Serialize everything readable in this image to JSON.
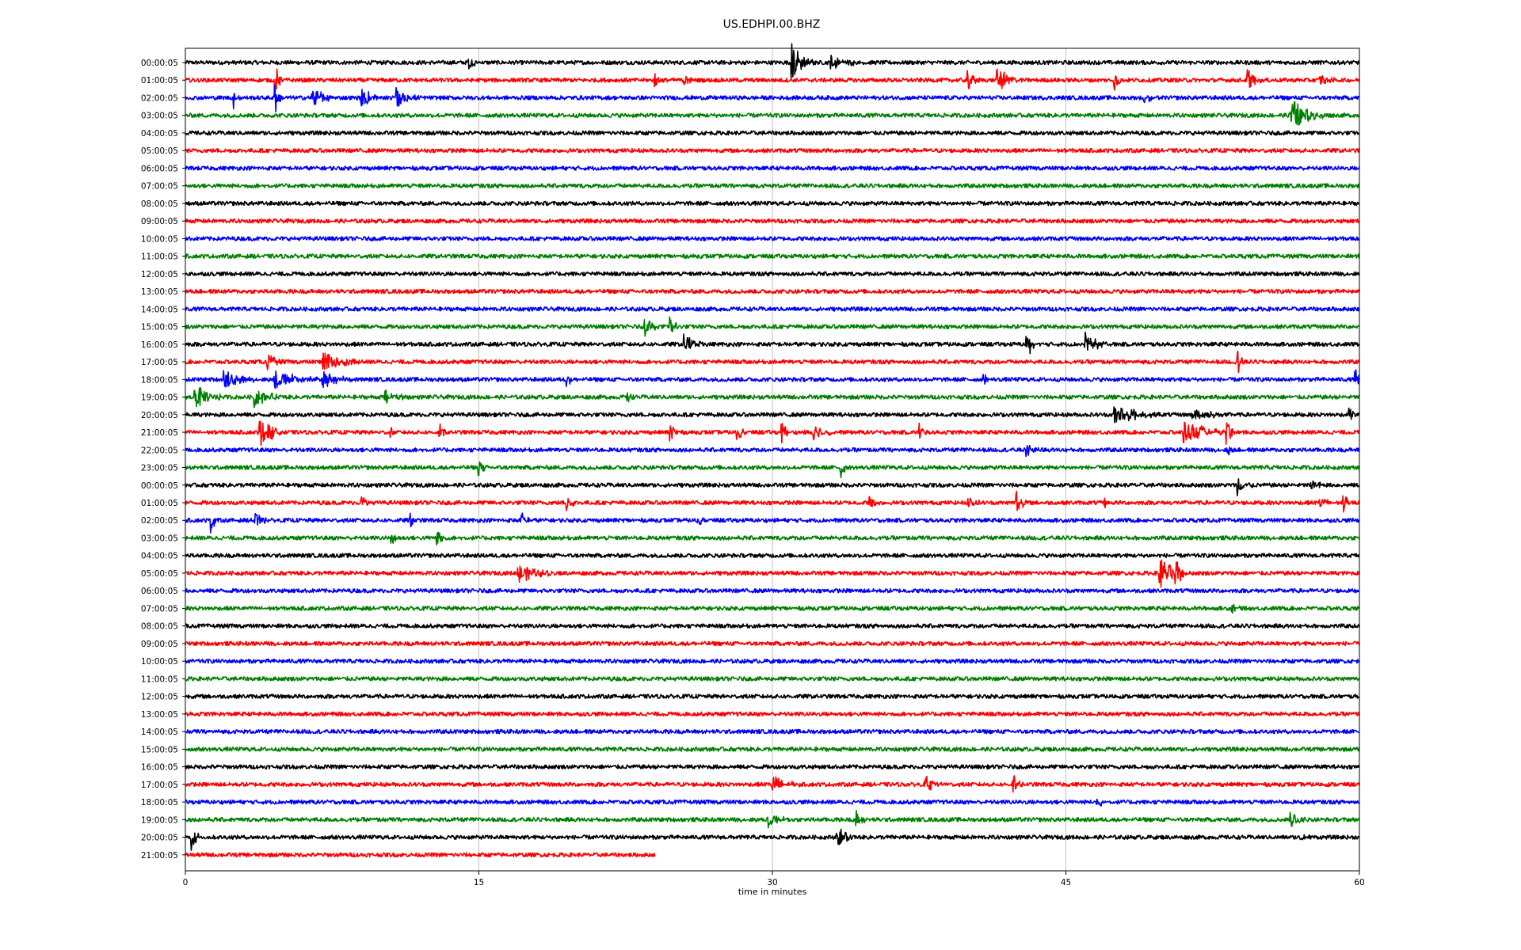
{
  "chart_data": {
    "type": "line",
    "title": "US.EDHPI.00.BHZ",
    "xlabel": "time in minutes",
    "ylabel": "",
    "xlim": [
      0,
      60
    ],
    "xticks": [
      0,
      15,
      30,
      45,
      60
    ],
    "grid": "vertical lines at x ticks",
    "trace_colors": [
      "#000000",
      "#ff0000",
      "#0000ff",
      "#008000"
    ],
    "row_labels": [
      "00:00:05",
      "01:00:05",
      "02:00:05",
      "03:00:05",
      "04:00:05",
      "05:00:05",
      "06:00:05",
      "07:00:05",
      "08:00:05",
      "09:00:05",
      "10:00:05",
      "11:00:05",
      "12:00:05",
      "13:00:05",
      "14:00:05",
      "15:00:05",
      "16:00:05",
      "17:00:05",
      "18:00:05",
      "19:00:05",
      "20:00:05",
      "21:00:05",
      "22:00:05",
      "23:00:05",
      "00:00:05",
      "01:00:05",
      "02:00:05",
      "03:00:05",
      "04:00:05",
      "05:00:05",
      "06:00:05",
      "07:00:05",
      "08:00:05",
      "09:00:05",
      "10:00:05",
      "11:00:05",
      "12:00:05",
      "13:00:05",
      "14:00:05",
      "15:00:05",
      "16:00:05",
      "17:00:05",
      "18:00:05",
      "19:00:05",
      "20:00:05",
      "21:00:05"
    ],
    "last_row_end_minute": 24,
    "events": [
      {
        "row": 0,
        "minute": 14.5,
        "amp": 0.5,
        "dur": 0.6
      },
      {
        "row": 0,
        "minute": 31.0,
        "amp": 1.4,
        "dur": 1.2
      },
      {
        "row": 0,
        "minute": 33.0,
        "amp": 0.6,
        "dur": 1.5
      },
      {
        "row": 1,
        "minute": 4.6,
        "amp": 1.2,
        "dur": 0.3
      },
      {
        "row": 1,
        "minute": 24.0,
        "amp": 0.5,
        "dur": 0.5
      },
      {
        "row": 1,
        "minute": 25.5,
        "amp": 0.4,
        "dur": 0.4
      },
      {
        "row": 1,
        "minute": 40.0,
        "amp": 0.7,
        "dur": 0.6
      },
      {
        "row": 1,
        "minute": 41.5,
        "amp": 1.0,
        "dur": 1.2
      },
      {
        "row": 1,
        "minute": 47.5,
        "amp": 0.9,
        "dur": 0.3
      },
      {
        "row": 1,
        "minute": 54.3,
        "amp": 0.8,
        "dur": 0.8
      },
      {
        "row": 1,
        "minute": 58.0,
        "amp": 0.5,
        "dur": 0.8
      },
      {
        "row": 2,
        "minute": 2.5,
        "amp": 0.9,
        "dur": 0.3
      },
      {
        "row": 2,
        "minute": 4.6,
        "amp": 1.2,
        "dur": 0.3
      },
      {
        "row": 2,
        "minute": 6.5,
        "amp": 0.8,
        "dur": 1.2
      },
      {
        "row": 2,
        "minute": 9.0,
        "amp": 0.7,
        "dur": 1.5
      },
      {
        "row": 2,
        "minute": 10.8,
        "amp": 0.8,
        "dur": 1.2
      },
      {
        "row": 2,
        "minute": 49.0,
        "amp": 0.5,
        "dur": 0.6
      },
      {
        "row": 3,
        "minute": 56.5,
        "amp": 1.2,
        "dur": 2.0
      },
      {
        "row": 15,
        "minute": 23.5,
        "amp": 0.8,
        "dur": 0.8
      },
      {
        "row": 15,
        "minute": 24.8,
        "amp": 0.7,
        "dur": 0.5
      },
      {
        "row": 16,
        "minute": 25.5,
        "amp": 0.7,
        "dur": 1.2
      },
      {
        "row": 16,
        "minute": 43.0,
        "amp": 0.9,
        "dur": 0.8
      },
      {
        "row": 16,
        "minute": 46.0,
        "amp": 0.8,
        "dur": 1.2
      },
      {
        "row": 17,
        "minute": 4.2,
        "amp": 0.6,
        "dur": 0.8
      },
      {
        "row": 17,
        "minute": 7.0,
        "amp": 0.9,
        "dur": 2.0
      },
      {
        "row": 17,
        "minute": 53.8,
        "amp": 0.9,
        "dur": 0.3
      },
      {
        "row": 18,
        "minute": 2.0,
        "amp": 0.8,
        "dur": 1.5
      },
      {
        "row": 18,
        "minute": 4.5,
        "amp": 0.7,
        "dur": 3.0
      },
      {
        "row": 18,
        "minute": 7.0,
        "amp": 0.7,
        "dur": 1.5
      },
      {
        "row": 18,
        "minute": 19.5,
        "amp": 0.5,
        "dur": 0.3
      },
      {
        "row": 18,
        "minute": 40.8,
        "amp": 0.5,
        "dur": 0.3
      },
      {
        "row": 18,
        "minute": 59.8,
        "amp": 0.8,
        "dur": 0.4
      },
      {
        "row": 19,
        "minute": 0.5,
        "amp": 0.9,
        "dur": 1.5
      },
      {
        "row": 19,
        "minute": 3.5,
        "amp": 0.8,
        "dur": 1.5
      },
      {
        "row": 19,
        "minute": 10.2,
        "amp": 0.7,
        "dur": 1.2
      },
      {
        "row": 19,
        "minute": 22.6,
        "amp": 0.5,
        "dur": 0.3
      },
      {
        "row": 20,
        "minute": 47.5,
        "amp": 0.8,
        "dur": 2.5
      },
      {
        "row": 20,
        "minute": 51.5,
        "amp": 0.4,
        "dur": 2.0
      },
      {
        "row": 20,
        "minute": 59.5,
        "amp": 0.6,
        "dur": 0.4
      },
      {
        "row": 21,
        "minute": 3.8,
        "amp": 1.1,
        "dur": 1.5
      },
      {
        "row": 21,
        "minute": 10.5,
        "amp": 0.5,
        "dur": 0.3
      },
      {
        "row": 21,
        "minute": 13.0,
        "amp": 0.6,
        "dur": 0.3
      },
      {
        "row": 21,
        "minute": 24.8,
        "amp": 0.7,
        "dur": 0.5
      },
      {
        "row": 21,
        "minute": 28.2,
        "amp": 0.6,
        "dur": 0.4
      },
      {
        "row": 21,
        "minute": 30.5,
        "amp": 0.8,
        "dur": 0.4
      },
      {
        "row": 21,
        "minute": 32.0,
        "amp": 0.7,
        "dur": 1.2
      },
      {
        "row": 21,
        "minute": 37.5,
        "amp": 0.6,
        "dur": 0.4
      },
      {
        "row": 21,
        "minute": 51.0,
        "amp": 0.9,
        "dur": 2.5
      },
      {
        "row": 21,
        "minute": 53.2,
        "amp": 1.1,
        "dur": 0.5
      },
      {
        "row": 22,
        "minute": 43.0,
        "amp": 0.5,
        "dur": 0.8
      },
      {
        "row": 22,
        "minute": 53.3,
        "amp": 0.4,
        "dur": 0.3
      },
      {
        "row": 23,
        "minute": 15.0,
        "amp": 0.7,
        "dur": 0.4
      },
      {
        "row": 23,
        "minute": 33.5,
        "amp": 0.9,
        "dur": 0.3
      },
      {
        "row": 24,
        "minute": 53.8,
        "amp": 0.7,
        "dur": 0.8
      },
      {
        "row": 24,
        "minute": 57.5,
        "amp": 0.5,
        "dur": 0.8
      },
      {
        "row": 25,
        "minute": 9.0,
        "amp": 0.5,
        "dur": 0.5
      },
      {
        "row": 25,
        "minute": 19.5,
        "amp": 0.7,
        "dur": 0.4
      },
      {
        "row": 25,
        "minute": 35.0,
        "amp": 0.6,
        "dur": 0.6
      },
      {
        "row": 25,
        "minute": 40.0,
        "amp": 0.5,
        "dur": 0.6
      },
      {
        "row": 25,
        "minute": 42.5,
        "amp": 1.1,
        "dur": 0.5
      },
      {
        "row": 25,
        "minute": 47.0,
        "amp": 0.4,
        "dur": 0.3
      },
      {
        "row": 25,
        "minute": 58.0,
        "amp": 0.5,
        "dur": 0.6
      },
      {
        "row": 25,
        "minute": 59.2,
        "amp": 0.8,
        "dur": 0.3
      },
      {
        "row": 26,
        "minute": 1.3,
        "amp": 0.8,
        "dur": 0.4
      },
      {
        "row": 26,
        "minute": 3.5,
        "amp": 0.6,
        "dur": 0.8
      },
      {
        "row": 26,
        "minute": 11.5,
        "amp": 0.6,
        "dur": 0.3
      },
      {
        "row": 26,
        "minute": 17.2,
        "amp": 0.6,
        "dur": 0.5
      },
      {
        "row": 26,
        "minute": 26.2,
        "amp": 0.4,
        "dur": 0.3
      },
      {
        "row": 27,
        "minute": 10.5,
        "amp": 0.5,
        "dur": 0.6
      },
      {
        "row": 27,
        "minute": 12.8,
        "amp": 0.9,
        "dur": 0.6
      },
      {
        "row": 29,
        "minute": 17.0,
        "amp": 0.8,
        "dur": 2.0
      },
      {
        "row": 29,
        "minute": 49.8,
        "amp": 1.2,
        "dur": 1.5
      },
      {
        "row": 29,
        "minute": 50.6,
        "amp": 1.4,
        "dur": 0.5
      },
      {
        "row": 31,
        "minute": 53.5,
        "amp": 0.4,
        "dur": 0.5
      },
      {
        "row": 41,
        "minute": 30.0,
        "amp": 0.7,
        "dur": 1.5
      },
      {
        "row": 41,
        "minute": 37.8,
        "amp": 0.6,
        "dur": 1.2
      },
      {
        "row": 41,
        "minute": 42.3,
        "amp": 0.8,
        "dur": 0.5
      },
      {
        "row": 42,
        "minute": 46.6,
        "amp": 0.5,
        "dur": 0.5
      },
      {
        "row": 43,
        "minute": 29.8,
        "amp": 0.6,
        "dur": 1.2
      },
      {
        "row": 43,
        "minute": 34.3,
        "amp": 0.7,
        "dur": 0.5
      },
      {
        "row": 43,
        "minute": 56.5,
        "amp": 0.6,
        "dur": 0.8
      },
      {
        "row": 44,
        "minute": 0.3,
        "amp": 1.2,
        "dur": 0.5
      },
      {
        "row": 44,
        "minute": 33.3,
        "amp": 0.8,
        "dur": 1.0
      },
      {
        "row": 44,
        "minute": 57.0,
        "amp": 0.4,
        "dur": 0.6
      }
    ]
  }
}
